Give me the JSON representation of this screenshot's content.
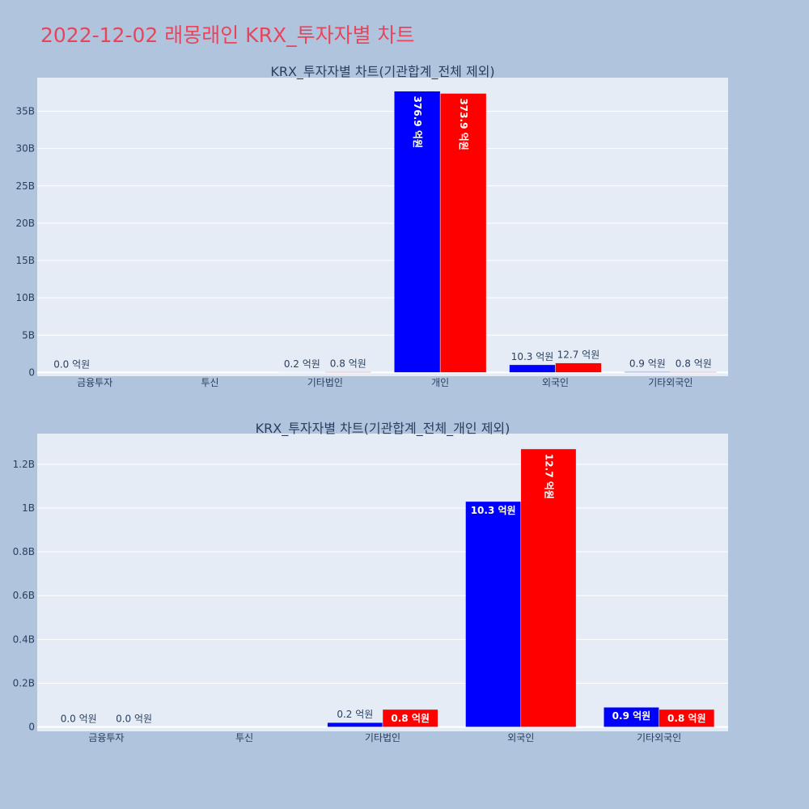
{
  "page": {
    "title": "2022-12-02 래몽래인 KRX_투자자별 차트",
    "title_color": "#e8455a",
    "background": "#b0c4de",
    "plot_background": "#e5ecf6"
  },
  "chart_data": [
    {
      "type": "bar",
      "title": "KRX_투자자별 차트(기관합계_전체 제외)",
      "categories": [
        "금융투자",
        "투신",
        "기타법인",
        "개인",
        "외국인",
        "기타외국인"
      ],
      "series": [
        {
          "color": "#0000ff",
          "values": [
            0,
            0,
            20000000.0,
            37690000000,
            1030000000,
            90000000
          ],
          "labels": [
            "0.0 억원",
            "",
            "0.2 억원",
            "376.9 억원",
            "10.3 억원",
            "0.9 억원"
          ]
        },
        {
          "color": "#ff0000",
          "values": [
            0,
            0,
            80000000.0,
            37390000000,
            1270000000,
            80000000
          ],
          "labels": [
            "",
            "",
            "0.8 억원",
            "373.9 억원",
            "12.7 억원",
            "0.8 억원"
          ]
        }
      ],
      "ylim": [
        -500000000,
        39500000000
      ],
      "yticks": [
        0,
        5000000000.0,
        10000000000.0,
        15000000000.0,
        20000000000.0,
        25000000000.0,
        30000000000.0,
        35000000000.0
      ],
      "ytick_labels": [
        "0",
        "5B",
        "10B",
        "15B",
        "20B",
        "25B",
        "30B",
        "35B"
      ],
      "grid": true
    },
    {
      "type": "bar",
      "title": "KRX_투자자별 차트(기관합계_전체_개인 제외)",
      "categories": [
        "금융투자",
        "투신",
        "기타법인",
        "외국인",
        "기타외국인"
      ],
      "series": [
        {
          "color": "#0000ff",
          "values": [
            0,
            0,
            20000000.0,
            1030000000,
            90000000
          ],
          "labels": [
            "0.0 억원",
            "",
            "0.2 억원",
            "10.3 억원",
            "0.9 억원"
          ]
        },
        {
          "color": "#ff0000",
          "values": [
            0,
            0,
            80000000.0,
            1270000000,
            80000000
          ],
          "labels": [
            "0.0 억원",
            "",
            "0.8 억원",
            "12.7 억원",
            "0.8 억원"
          ]
        }
      ],
      "ylim": [
        -20000000,
        1340000000
      ],
      "yticks": [
        0,
        200000000.0,
        400000000.0,
        600000000.0,
        800000000.0,
        1000000000.0,
        1200000000.0
      ],
      "ytick_labels": [
        "0",
        "0.2B",
        "0.4B",
        "0.6B",
        "0.8B",
        "1B",
        "1.2B"
      ],
      "grid": true
    }
  ]
}
